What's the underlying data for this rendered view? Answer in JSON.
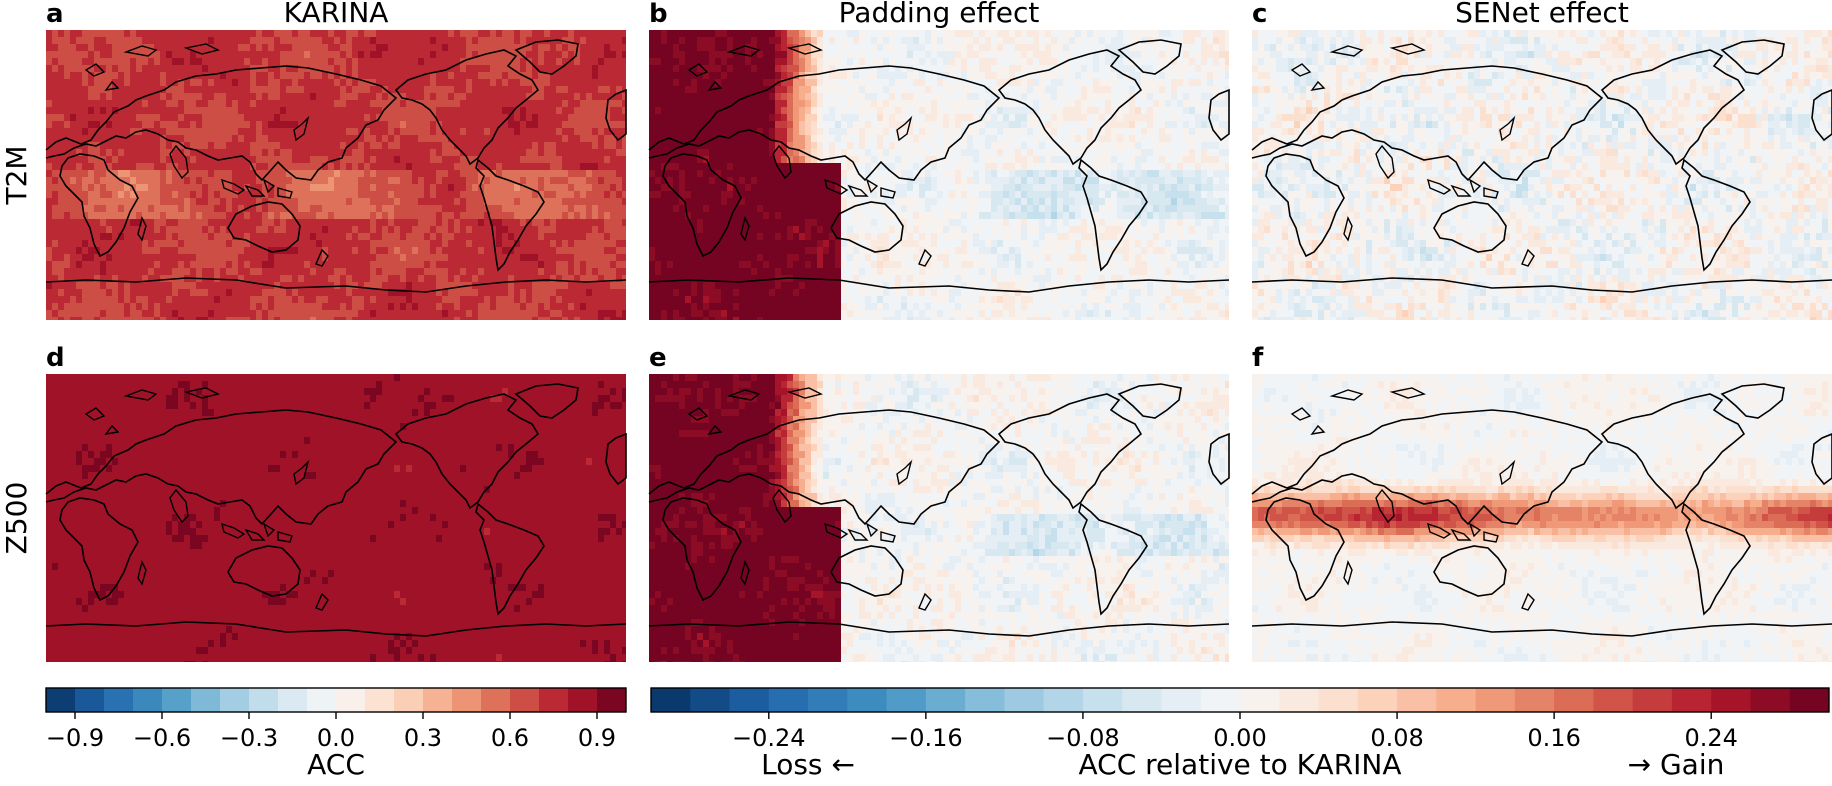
{
  "chart_data": {
    "type": "heatmap",
    "description_labels": {
      "rows": [
        "T2M",
        "Z500"
      ],
      "columns": [
        "KARINA",
        "Padding effect",
        "SENet effect"
      ]
    },
    "panels": [
      {
        "letter": "a",
        "title": "KARINA",
        "row": "T2M",
        "metric": "ACC",
        "pattern": "uniform_high",
        "typical_value": 0.85
      },
      {
        "letter": "b",
        "title": "Padding effect",
        "row": "T2M",
        "metric": "ACC relative to KARINA",
        "pattern": "west_gain",
        "typical_value": 0.01
      },
      {
        "letter": "c",
        "title": "SENet effect",
        "row": "T2M",
        "metric": "ACC relative to KARINA",
        "pattern": "mixed_small",
        "typical_value": 0.0
      },
      {
        "letter": "d",
        "title": "",
        "row": "Z500",
        "metric": "ACC",
        "pattern": "uniform_very_high",
        "typical_value": 0.92
      },
      {
        "letter": "e",
        "title": "",
        "row": "Z500",
        "metric": "ACC relative to KARINA",
        "pattern": "west_gain",
        "typical_value": 0.02
      },
      {
        "letter": "f",
        "title": "",
        "row": "Z500",
        "metric": "ACC relative to KARINA",
        "pattern": "equatorial_band",
        "typical_value": 0.02
      }
    ],
    "colorbars": [
      {
        "label": "ACC",
        "vmin": -1.0,
        "vmax": 1.0,
        "levels": 20,
        "ticks": [
          -0.9,
          -0.6,
          -0.3,
          0.0,
          0.3,
          0.6,
          0.9
        ],
        "tick_labels": [
          "−0.9",
          "−0.6",
          "−0.3",
          "0.0",
          "0.3",
          "0.6",
          "0.9"
        ]
      },
      {
        "label": "ACC relative to KARINA",
        "vmin": -0.3,
        "vmax": 0.3,
        "levels": 30,
        "ticks": [
          -0.24,
          -0.16,
          -0.08,
          0.0,
          0.08,
          0.16,
          0.24
        ],
        "tick_labels": [
          "−0.24",
          "−0.16",
          "−0.08",
          "0.00",
          "0.08",
          "0.16",
          "0.24"
        ],
        "left_note": "Loss ←",
        "right_note": "→ Gain"
      }
    ],
    "colormap": "RdBu_r",
    "colors": [
      "#053061",
      "#2166ac",
      "#4393c3",
      "#92c5de",
      "#d1e5f0",
      "#f7f7f7",
      "#fddbc7",
      "#f4a582",
      "#d6604d",
      "#b2182b",
      "#67001f"
    ]
  }
}
